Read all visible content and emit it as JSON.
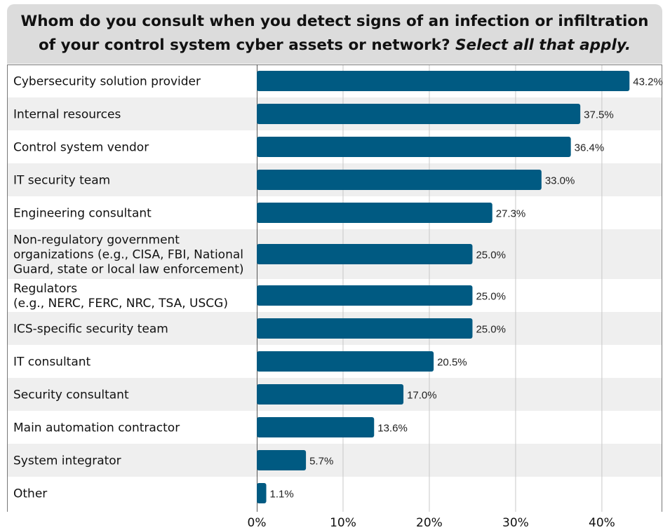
{
  "chart_data": {
    "type": "bar",
    "orientation": "horizontal",
    "title_line1": "Whom do you consult when you detect signs of an infection or infiltration",
    "title_line2_main": "of your control system cyber assets or network?",
    "title_line2_italic": "Select all that apply.",
    "categories": [
      [
        "Cybersecurity solution provider"
      ],
      [
        "Internal resources"
      ],
      [
        "Control system vendor"
      ],
      [
        "IT security team"
      ],
      [
        "Engineering consultant"
      ],
      [
        "Non-regulatory government",
        "organizations (e.g., CISA, FBI, National",
        "Guard, state or local law enforcement)"
      ],
      [
        "Regulators",
        "(e.g., NERC, FERC, NRC, TSA, USCG)"
      ],
      [
        "ICS-specific security team"
      ],
      [
        "IT consultant"
      ],
      [
        "Security consultant"
      ],
      [
        "Main automation contractor"
      ],
      [
        "System integrator"
      ],
      [
        "Other"
      ]
    ],
    "values": [
      43.2,
      37.5,
      36.4,
      33.0,
      27.3,
      25.0,
      25.0,
      25.0,
      20.5,
      17.0,
      13.6,
      5.7,
      1.1
    ],
    "value_labels": [
      "43.2%",
      "37.5%",
      "36.4%",
      "33.0%",
      "27.3%",
      "25.0%",
      "25.0%",
      "25.0%",
      "20.5%",
      "17.0%",
      "13.6%",
      "5.7%",
      "1.1%"
    ],
    "x_ticks": [
      0,
      10,
      20,
      30,
      40
    ],
    "x_tick_labels": [
      "0%",
      "10%",
      "20%",
      "30%",
      "40%"
    ],
    "xlim": [
      0,
      47
    ],
    "grid": true,
    "bar_color": "#005a82",
    "alt_row_color": "#efefef",
    "title_bg_color": "#dcdcdc"
  }
}
